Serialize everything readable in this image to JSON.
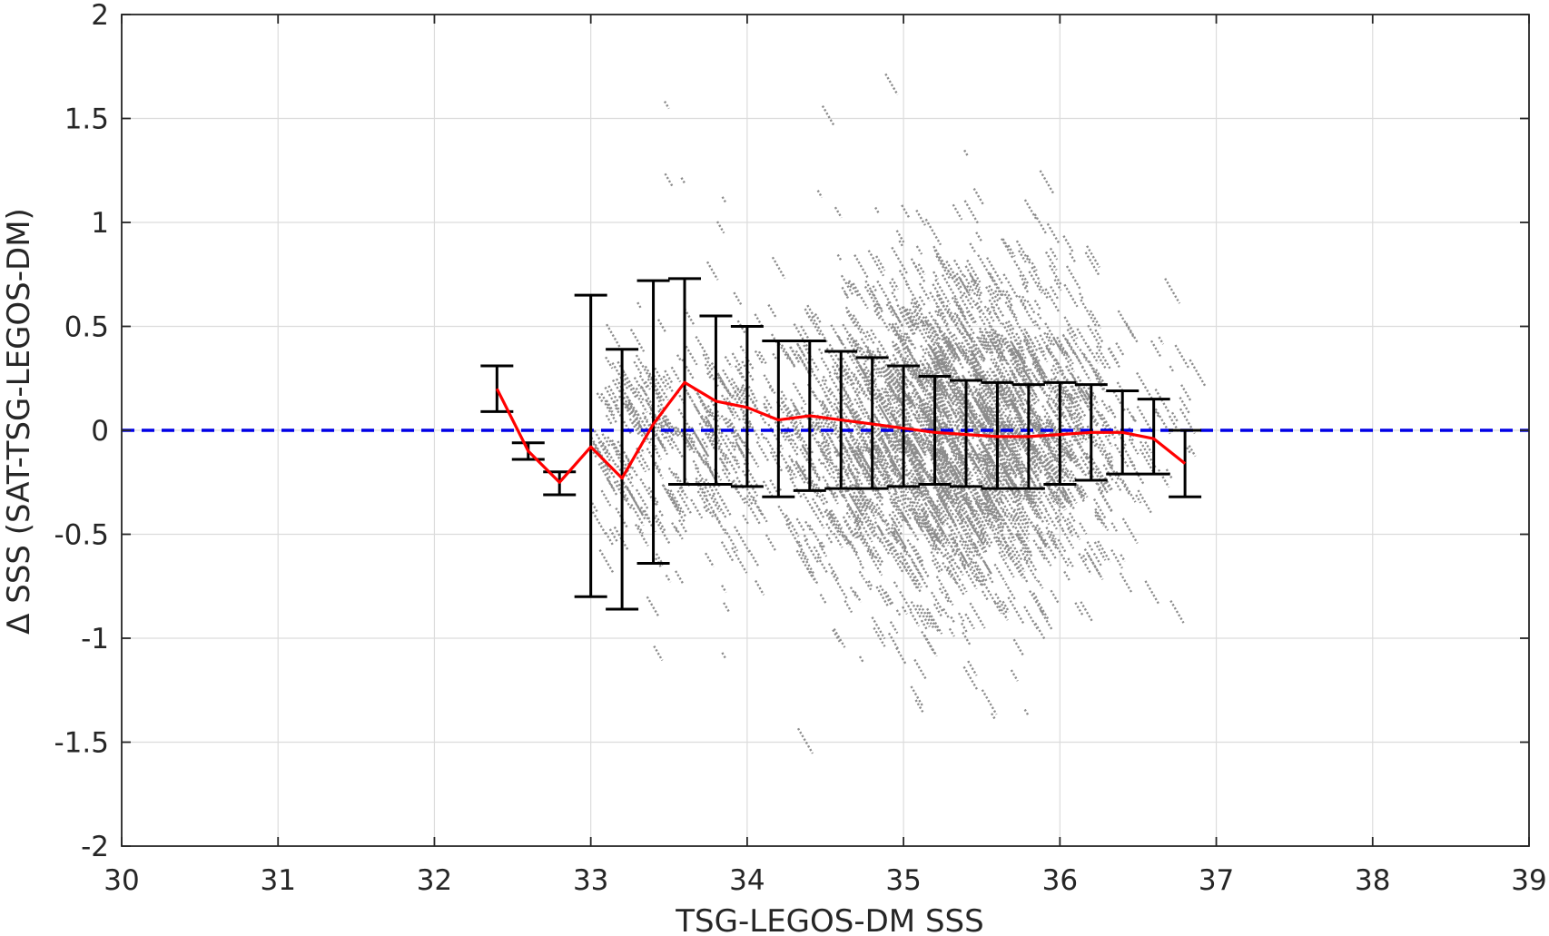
{
  "chart_data": {
    "type": "scatter",
    "title": "",
    "xlabel": "TSG-LEGOS-DM SSS",
    "ylabel": "Δ SSS (SAT-TSG-LEGOS-DM)",
    "xlim": [
      30,
      39
    ],
    "ylim": [
      -2,
      2
    ],
    "x_ticks": [
      "30",
      "31",
      "32",
      "33",
      "34",
      "35",
      "36",
      "37",
      "38",
      "39"
    ],
    "y_ticks": [
      "2",
      "1.5",
      "1",
      "0.5",
      "0",
      "-0.5",
      "-1",
      "-1.5",
      "-2"
    ],
    "grid": true,
    "legend": "none",
    "colors": {
      "scatter": "#8c8c8c",
      "mean_line": "#ff0000",
      "error_bars": "#000000",
      "zero_line": "#0000e6",
      "grid": "#dcdcdc",
      "axes": "#262626"
    },
    "reference_line": {
      "y": 0,
      "style": "dashed"
    },
    "binned_stats": {
      "x": [
        32.4,
        32.6,
        32.8,
        33.0,
        33.2,
        33.4,
        33.6,
        33.8,
        34.0,
        34.2,
        34.4,
        34.6,
        34.8,
        35.0,
        35.2,
        35.4,
        35.6,
        35.8,
        36.0,
        36.2,
        36.4,
        36.6,
        36.8
      ],
      "mean": [
        0.2,
        -0.1,
        -0.25,
        -0.08,
        -0.23,
        0.03,
        0.23,
        0.14,
        0.11,
        0.05,
        0.07,
        0.05,
        0.03,
        0.01,
        -0.01,
        -0.02,
        -0.03,
        -0.03,
        -0.02,
        -0.01,
        -0.01,
        -0.04,
        -0.16
      ],
      "upper": [
        0.31,
        -0.06,
        -0.2,
        0.65,
        0.39,
        0.72,
        0.73,
        0.55,
        0.5,
        0.43,
        0.43,
        0.38,
        0.35,
        0.31,
        0.26,
        0.24,
        0.23,
        0.22,
        0.23,
        0.22,
        0.19,
        0.15,
        0.0
      ],
      "lower": [
        0.09,
        -0.14,
        -0.31,
        -0.8,
        -0.86,
        -0.64,
        -0.26,
        -0.26,
        -0.27,
        -0.32,
        -0.29,
        -0.28,
        -0.28,
        -0.27,
        -0.26,
        -0.27,
        -0.28,
        -0.28,
        -0.26,
        -0.24,
        -0.21,
        -0.21,
        -0.32
      ]
    },
    "scatter_distribution": {
      "description_points": "dense gray point cloud",
      "x_range": [
        32.3,
        36.9
      ],
      "center_x": 35.3,
      "center_y": 0.0,
      "spread_y": 0.4,
      "streak_slope": -1.3
    }
  }
}
